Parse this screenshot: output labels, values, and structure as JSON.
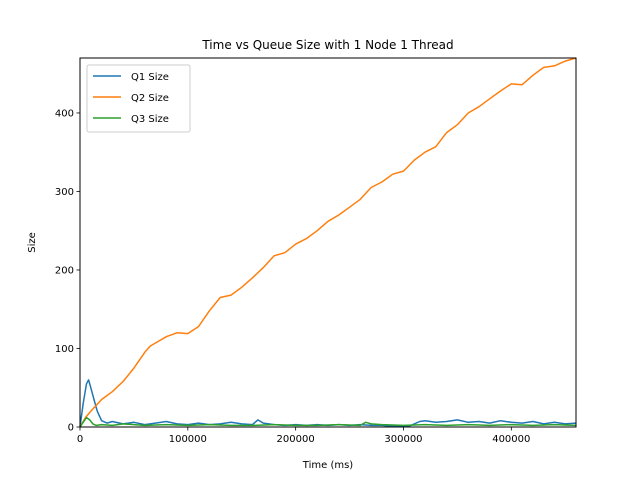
{
  "chart_data": {
    "type": "line",
    "title": "Time vs Queue Size with 1 Node 1 Thread",
    "xlabel": "Time (ms)",
    "ylabel": "Size",
    "xlim": [
      0,
      460000
    ],
    "ylim": [
      0,
      470
    ],
    "xticks": [
      0,
      100000,
      200000,
      300000,
      400000
    ],
    "yticks": [
      0,
      100,
      200,
      300,
      400
    ],
    "grid": false,
    "legend_position": "top-left",
    "series": [
      {
        "name": "Q1 Size",
        "color": "#1f77b4",
        "x": [
          0,
          3000,
          6000,
          8000,
          10000,
          13000,
          16000,
          20000,
          25000,
          30000,
          40000,
          50000,
          60000,
          70000,
          80000,
          90000,
          100000,
          110000,
          120000,
          130000,
          140000,
          150000,
          160000,
          165000,
          170000,
          180000,
          190000,
          200000,
          210000,
          220000,
          230000,
          240000,
          250000,
          260000,
          270000,
          280000,
          290000,
          300000,
          305000,
          310000,
          315000,
          320000,
          330000,
          340000,
          350000,
          360000,
          370000,
          380000,
          390000,
          400000,
          410000,
          420000,
          430000,
          440000,
          450000,
          460000
        ],
        "y": [
          0,
          30,
          55,
          60,
          50,
          35,
          20,
          8,
          5,
          7,
          4,
          6,
          3,
          5,
          7,
          4,
          3,
          5,
          3,
          4,
          6,
          4,
          3,
          9,
          5,
          3,
          2,
          3,
          2,
          3,
          2,
          3,
          2,
          3,
          2,
          2,
          1,
          1,
          1,
          4,
          7,
          8,
          6,
          7,
          9,
          6,
          7,
          5,
          8,
          6,
          5,
          7,
          4,
          6,
          4,
          5
        ]
      },
      {
        "name": "Q2 Size",
        "color": "#ff7f0e",
        "x": [
          0,
          5000,
          10000,
          20000,
          30000,
          40000,
          50000,
          60000,
          65000,
          70000,
          80000,
          90000,
          100000,
          110000,
          120000,
          130000,
          140000,
          150000,
          160000,
          170000,
          180000,
          190000,
          200000,
          210000,
          220000,
          230000,
          240000,
          250000,
          260000,
          270000,
          280000,
          290000,
          300000,
          310000,
          320000,
          330000,
          340000,
          350000,
          360000,
          370000,
          380000,
          390000,
          400000,
          410000,
          420000,
          430000,
          440000,
          450000,
          460000
        ],
        "y": [
          0,
          12,
          20,
          35,
          45,
          58,
          75,
          95,
          103,
          107,
          115,
          120,
          119,
          128,
          148,
          165,
          168,
          178,
          190,
          203,
          218,
          222,
          233,
          240,
          250,
          262,
          270,
          280,
          290,
          305,
          312,
          322,
          326,
          340,
          350,
          357,
          375,
          385,
          400,
          408,
          418,
          428,
          437,
          436,
          448,
          458,
          460,
          466,
          470
        ]
      },
      {
        "name": "Q3 Size",
        "color": "#2ca02c",
        "x": [
          0,
          3000,
          6000,
          9000,
          12000,
          15000,
          20000,
          30000,
          40000,
          50000,
          60000,
          80000,
          100000,
          120000,
          140000,
          160000,
          180000,
          200000,
          220000,
          240000,
          260000,
          265000,
          270000,
          280000,
          300000,
          320000,
          340000,
          360000,
          380000,
          400000,
          420000,
          440000,
          460000
        ],
        "y": [
          0,
          6,
          12,
          9,
          4,
          2,
          3,
          2,
          4,
          3,
          2,
          3,
          2,
          3,
          2,
          2,
          3,
          2,
          2,
          3,
          2,
          6,
          4,
          3,
          2,
          3,
          2,
          3,
          2,
          3,
          2,
          3,
          2
        ]
      }
    ]
  }
}
